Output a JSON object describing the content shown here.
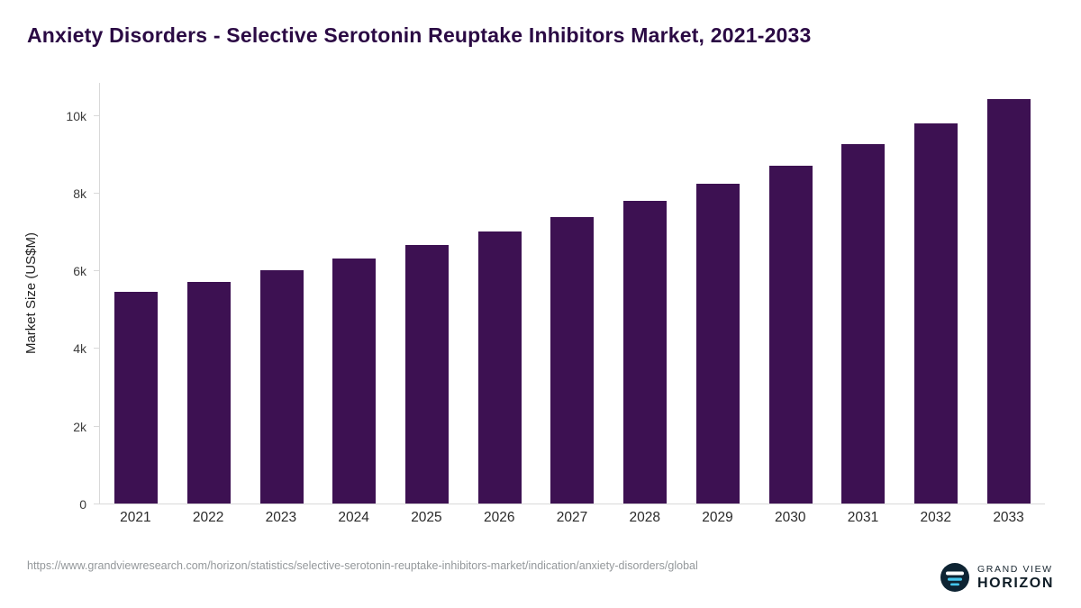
{
  "title": "Anxiety Disorders - Selective Serotonin Reuptake Inhibitors Market, 2021-2033",
  "chart_data": {
    "type": "bar",
    "title": "Anxiety Disorders - Selective Serotonin Reuptake Inhibitors Market, 2021-2033",
    "categories": [
      "2021",
      "2022",
      "2023",
      "2024",
      "2025",
      "2026",
      "2027",
      "2028",
      "2029",
      "2030",
      "2031",
      "2032",
      "2033"
    ],
    "values": [
      5450,
      5700,
      6000,
      6300,
      6650,
      7000,
      7380,
      7800,
      8230,
      8700,
      9250,
      9780,
      10400
    ],
    "xlabel": "",
    "ylabel": "Market Size (US$M)",
    "ylim": [
      0,
      10850
    ],
    "yticks": [
      {
        "label": "0",
        "value": 0
      },
      {
        "label": "2k",
        "value": 2000
      },
      {
        "label": "4k",
        "value": 4000
      },
      {
        "label": "6k",
        "value": 6000
      },
      {
        "label": "8k",
        "value": 8000
      },
      {
        "label": "10k",
        "value": 10000
      }
    ],
    "bar_color": "#3d1152",
    "grid": false,
    "legend": "none"
  },
  "footer": {
    "source_url": "https://www.grandviewresearch.com/horizon/statistics/selective-serotonin-reuptake-inhibitors-market/indication/anxiety-disorders/global",
    "brand_line1": "GRAND VIEW",
    "brand_line2": "HORIZON",
    "logo_icon": "horizon-circle-icon",
    "colors": {
      "brand_dark": "#0e2433",
      "brand_blue": "#45c6ec",
      "title_purple": "#2b0a44"
    }
  }
}
